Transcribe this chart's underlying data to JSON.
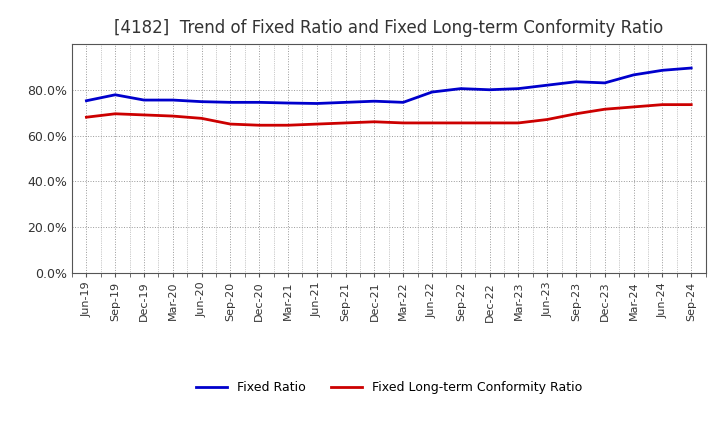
{
  "title": "[4182]  Trend of Fixed Ratio and Fixed Long-term Conformity Ratio",
  "title_fontsize": 12,
  "title_color": "#333333",
  "background_color": "#ffffff",
  "grid_color": "#999999",
  "xlabels": [
    "Jun-19",
    "Sep-19",
    "Dec-19",
    "Mar-20",
    "Jun-20",
    "Sep-20",
    "Dec-20",
    "Mar-21",
    "Jun-21",
    "Sep-21",
    "Dec-21",
    "Mar-22",
    "Jun-22",
    "Sep-22",
    "Dec-22",
    "Mar-23",
    "Jun-23",
    "Sep-23",
    "Dec-23",
    "Mar-24",
    "Jun-24",
    "Sep-24"
  ],
  "fixed_ratio": [
    75.2,
    77.8,
    75.5,
    75.5,
    74.8,
    74.5,
    74.5,
    74.2,
    74.0,
    74.5,
    75.0,
    74.5,
    79.0,
    80.5,
    80.0,
    80.5,
    82.0,
    83.5,
    83.0,
    86.5,
    88.5,
    89.5
  ],
  "fixed_lt_ratio": [
    68.0,
    69.5,
    69.0,
    68.5,
    67.5,
    65.0,
    64.5,
    64.5,
    65.0,
    65.5,
    66.0,
    65.5,
    65.5,
    65.5,
    65.5,
    65.5,
    67.0,
    69.5,
    71.5,
    72.5,
    73.5,
    73.5
  ],
  "fixed_ratio_color": "#0000cc",
  "fixed_lt_ratio_color": "#cc0000",
  "ylim": [
    0,
    100
  ],
  "yticks": [
    0,
    20,
    40,
    60,
    80
  ],
  "legend_fixed": "Fixed Ratio",
  "legend_lt": "Fixed Long-term Conformity Ratio",
  "line_width": 2.0,
  "spine_color": "#555555",
  "tick_fontsize": 8,
  "ytick_fontsize": 9
}
